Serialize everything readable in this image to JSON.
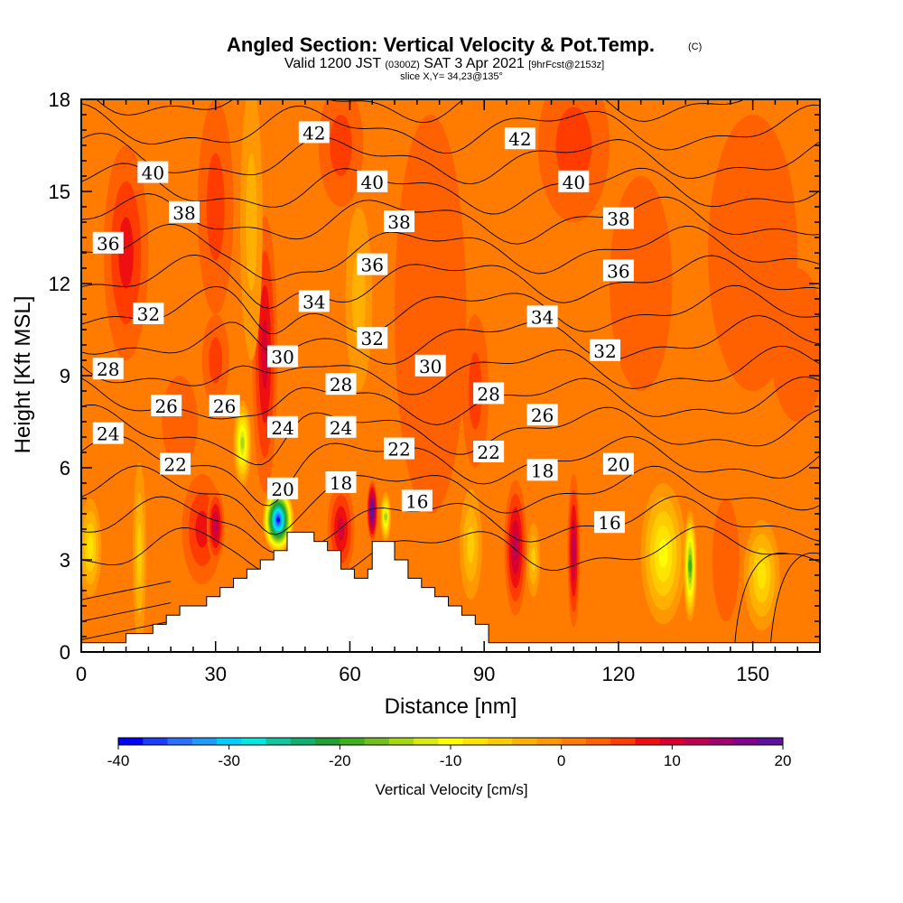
{
  "title": {
    "main": "Angled Section: Vertical Velocity & Pot.Temp.",
    "units": "(C)",
    "valid": "Valid 1200 JST",
    "utc": "(0300Z)",
    "date": "SAT 3 Apr 2021",
    "fcst": "[9hrFcst@2153z]",
    "slice": "slice X,Y= 34,23@135°"
  },
  "chart_data": {
    "type": "heatmap",
    "xlabel": "Distance [nm]",
    "ylabel": "Height [Kft MSL]",
    "xlim": [
      0,
      165
    ],
    "ylim": [
      0,
      18
    ],
    "x_ticks": [
      "0",
      "30",
      "60",
      "90",
      "120",
      "150"
    ],
    "x_tick_values": [
      0,
      30,
      60,
      90,
      120,
      150
    ],
    "y_ticks": [
      "0",
      "3",
      "6",
      "9",
      "12",
      "15",
      "18"
    ],
    "y_tick_values": [
      0,
      3,
      6,
      9,
      12,
      15,
      18
    ],
    "colorbar": {
      "label": "Vertical Velocity [cm/s]",
      "range": [
        -40,
        20
      ],
      "tick_labels": [
        "-40",
        "-30",
        "-20",
        "-10",
        "0",
        "10",
        "20"
      ],
      "tick_values": [
        -40,
        -30,
        -20,
        -10,
        0,
        10,
        20
      ],
      "colors": [
        "#0000ff",
        "#1a3dff",
        "#2a6fff",
        "#1f9bff",
        "#00d0ff",
        "#00e8e0",
        "#10c8a0",
        "#10b070",
        "#20a030",
        "#40b020",
        "#70c020",
        "#a8d810",
        "#d8ec10",
        "#ffff00",
        "#ffe400",
        "#ffcc00",
        "#ffb000",
        "#ff9800",
        "#ff7c00",
        "#ff6000",
        "#ff3c00",
        "#ee1010",
        "#d80030",
        "#c00050",
        "#a00070",
        "#800090",
        "#6010a0"
      ]
    },
    "terrain_profile_kft": [
      [
        0,
        0.3
      ],
      [
        10,
        0.3
      ],
      [
        10,
        0.6
      ],
      [
        16,
        0.6
      ],
      [
        16,
        0.9
      ],
      [
        19,
        0.9
      ],
      [
        19,
        1.2
      ],
      [
        22,
        1.2
      ],
      [
        22,
        1.5
      ],
      [
        28,
        1.5
      ],
      [
        28,
        1.8
      ],
      [
        31,
        1.8
      ],
      [
        31,
        2.1
      ],
      [
        34,
        2.1
      ],
      [
        34,
        2.4
      ],
      [
        37,
        2.4
      ],
      [
        37,
        2.7
      ],
      [
        40,
        2.7
      ],
      [
        40,
        3.0
      ],
      [
        43,
        3.0
      ],
      [
        43,
        3.3
      ],
      [
        46,
        3.3
      ],
      [
        46,
        3.9
      ],
      [
        52,
        3.9
      ],
      [
        52,
        3.6
      ],
      [
        55,
        3.6
      ],
      [
        55,
        3.3
      ],
      [
        58,
        3.3
      ],
      [
        58,
        2.7
      ],
      [
        61,
        2.7
      ],
      [
        61,
        2.4
      ],
      [
        64,
        2.4
      ],
      [
        64,
        2.7
      ],
      [
        65,
        2.7
      ],
      [
        65,
        3.6
      ],
      [
        70,
        3.6
      ],
      [
        70,
        3.0
      ],
      [
        73,
        3.0
      ],
      [
        73,
        2.4
      ],
      [
        76,
        2.4
      ],
      [
        76,
        2.1
      ],
      [
        79,
        2.1
      ],
      [
        79,
        1.8
      ],
      [
        82,
        1.8
      ],
      [
        82,
        1.5
      ],
      [
        85,
        1.5
      ],
      [
        85,
        1.2
      ],
      [
        88,
        1.2
      ],
      [
        88,
        0.9
      ],
      [
        91,
        0.9
      ],
      [
        91,
        0.3
      ],
      [
        165,
        0.3
      ]
    ],
    "theta_contour_labels": [
      {
        "value": "42",
        "x": 52,
        "y": 16.9
      },
      {
        "value": "42",
        "x": 98,
        "y": 16.7
      },
      {
        "value": "40",
        "x": 16,
        "y": 15.6
      },
      {
        "value": "40",
        "x": 65,
        "y": 15.3
      },
      {
        "value": "40",
        "x": 110,
        "y": 15.3
      },
      {
        "value": "38",
        "x": 23,
        "y": 14.3
      },
      {
        "value": "38",
        "x": 71,
        "y": 14.0
      },
      {
        "value": "38",
        "x": 120,
        "y": 14.1
      },
      {
        "value": "36",
        "x": 6,
        "y": 13.3
      },
      {
        "value": "36",
        "x": 65,
        "y": 12.6
      },
      {
        "value": "36",
        "x": 120,
        "y": 12.4
      },
      {
        "value": "34",
        "x": 52,
        "y": 11.4
      },
      {
        "value": "34",
        "x": 103,
        "y": 10.9
      },
      {
        "value": "32",
        "x": 15,
        "y": 11.0
      },
      {
        "value": "32",
        "x": 65,
        "y": 10.2
      },
      {
        "value": "32",
        "x": 117,
        "y": 9.8
      },
      {
        "value": "30",
        "x": 45,
        "y": 9.6
      },
      {
        "value": "30",
        "x": 78,
        "y": 9.3
      },
      {
        "value": "28",
        "x": 6,
        "y": 9.2
      },
      {
        "value": "28",
        "x": 58,
        "y": 8.7
      },
      {
        "value": "28",
        "x": 91,
        "y": 8.4
      },
      {
        "value": "26",
        "x": 19,
        "y": 8.0
      },
      {
        "value": "26",
        "x": 32,
        "y": 8.0
      },
      {
        "value": "26",
        "x": 103,
        "y": 7.7
      },
      {
        "value": "24",
        "x": 6,
        "y": 7.1
      },
      {
        "value": "24",
        "x": 45,
        "y": 7.3
      },
      {
        "value": "24",
        "x": 58,
        "y": 7.3
      },
      {
        "value": "22",
        "x": 21,
        "y": 6.1
      },
      {
        "value": "22",
        "x": 71,
        "y": 6.6
      },
      {
        "value": "22",
        "x": 91,
        "y": 6.5
      },
      {
        "value": "20",
        "x": 45,
        "y": 5.3
      },
      {
        "value": "20",
        "x": 120,
        "y": 6.1
      },
      {
        "value": "18",
        "x": 58,
        "y": 5.5
      },
      {
        "value": "18",
        "x": 103,
        "y": 5.9
      },
      {
        "value": "16",
        "x": 75,
        "y": 4.9
      },
      {
        "value": "16",
        "x": 118,
        "y": 4.2
      }
    ],
    "theta_levels": [
      16,
      18,
      20,
      22,
      24,
      26,
      28,
      30,
      32,
      34,
      36,
      38,
      40,
      42
    ],
    "vertical_velocity_features": [
      {
        "x": 13,
        "y": 3.2,
        "w": -6,
        "rx": 1.5,
        "ry": 3.0
      },
      {
        "x": 27,
        "y": 4.0,
        "w": 8,
        "rx": 4.5,
        "ry": 1.8
      },
      {
        "x": 30,
        "y": 4.1,
        "w": 12,
        "rx": 2.0,
        "ry": 1.2
      },
      {
        "x": 44,
        "y": 4.3,
        "w": -38,
        "rx": 3.5,
        "ry": 1.1
      },
      {
        "x": 58,
        "y": 4.0,
        "w": 10,
        "rx": 3.0,
        "ry": 1.5
      },
      {
        "x": 65,
        "y": 4.6,
        "w": 20,
        "rx": 1.2,
        "ry": 1.0
      },
      {
        "x": 68,
        "y": 4.4,
        "w": -14,
        "rx": 1.2,
        "ry": 0.8
      },
      {
        "x": 87,
        "y": 3.5,
        "w": -5,
        "rx": 2.5,
        "ry": 1.8
      },
      {
        "x": 97,
        "y": 3.4,
        "w": 12,
        "rx": 2.5,
        "ry": 2.2
      },
      {
        "x": 101,
        "y": 3.0,
        "w": -6,
        "rx": 1.5,
        "ry": 1.2
      },
      {
        "x": 110,
        "y": 3.3,
        "w": 12,
        "rx": 1.4,
        "ry": 2.5
      },
      {
        "x": 130,
        "y": 3.2,
        "w": -9,
        "rx": 5.0,
        "ry": 2.3
      },
      {
        "x": 136,
        "y": 2.8,
        "w": -18,
        "rx": 1.5,
        "ry": 1.8
      },
      {
        "x": 144,
        "y": 3.0,
        "w": 4,
        "rx": 3.0,
        "ry": 2.0
      },
      {
        "x": 152,
        "y": 2.5,
        "w": -8,
        "rx": 4.0,
        "ry": 1.8
      },
      {
        "x": 2,
        "y": 3.4,
        "w": -8,
        "rx": 2.5,
        "ry": 1.6
      },
      {
        "x": 10,
        "y": 13.0,
        "w": 8,
        "rx": 5.0,
        "ry": 3.5
      },
      {
        "x": 30,
        "y": 14.5,
        "w": 6,
        "rx": 4.0,
        "ry": 3.5
      },
      {
        "x": 41,
        "y": 9.7,
        "w": 10,
        "rx": 2.8,
        "ry": 4.5
      },
      {
        "x": 38,
        "y": 14.0,
        "w": -4,
        "rx": 2.5,
        "ry": 4.5
      },
      {
        "x": 58,
        "y": 16.5,
        "w": 6,
        "rx": 5.0,
        "ry": 2.0
      },
      {
        "x": 62,
        "y": 11.5,
        "w": -4,
        "rx": 3.0,
        "ry": 3.0
      },
      {
        "x": 22,
        "y": 7.5,
        "w": 4,
        "rx": 4.0,
        "ry": 1.5
      },
      {
        "x": 36,
        "y": 6.8,
        "w": -14,
        "rx": 2.0,
        "ry": 1.4
      },
      {
        "x": 30,
        "y": 9.5,
        "w": 5,
        "rx": 3.0,
        "ry": 1.5
      },
      {
        "x": 78,
        "y": 11.0,
        "w": 4,
        "rx": 8.0,
        "ry": 6.5
      },
      {
        "x": 88,
        "y": 8.5,
        "w": 5,
        "rx": 3.0,
        "ry": 2.5
      },
      {
        "x": 110,
        "y": 16.5,
        "w": 5,
        "rx": 8.0,
        "ry": 2.5
      },
      {
        "x": 125,
        "y": 12.0,
        "w": 4,
        "rx": 7.0,
        "ry": 3.5
      },
      {
        "x": 150,
        "y": 13.0,
        "w": 3,
        "rx": 10.0,
        "ry": 4.5
      },
      {
        "x": 160,
        "y": 10.0,
        "w": 4,
        "rx": 6.0,
        "ry": 2.5
      }
    ]
  }
}
